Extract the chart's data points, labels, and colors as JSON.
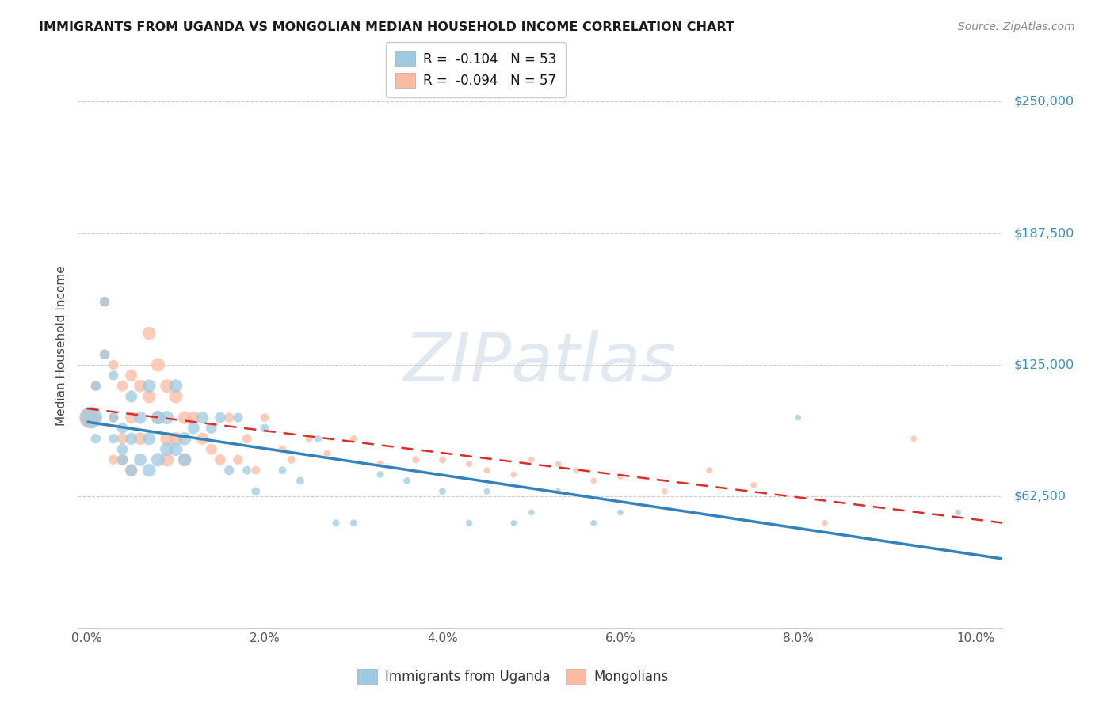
{
  "title": "IMMIGRANTS FROM UGANDA VS MONGOLIAN MEDIAN HOUSEHOLD INCOME CORRELATION CHART",
  "source": "Source: ZipAtlas.com",
  "ylabel": "Median Household Income",
  "yticks": [
    62500,
    125000,
    187500,
    250000
  ],
  "ytick_labels": [
    "$62,500",
    "$125,000",
    "$187,500",
    "$250,000"
  ],
  "xlim": [
    -0.001,
    0.103
  ],
  "ylim": [
    0,
    268000
  ],
  "blue_color": "#9ecae1",
  "pink_color": "#fcbba1",
  "blue_color_dark": "#3182bd",
  "pink_color_dark": "#de2d26",
  "watermark": "ZIPatlas",
  "ugandan_x": [
    0.0005,
    0.001,
    0.001,
    0.002,
    0.002,
    0.003,
    0.003,
    0.003,
    0.004,
    0.004,
    0.004,
    0.005,
    0.005,
    0.005,
    0.006,
    0.006,
    0.007,
    0.007,
    0.007,
    0.008,
    0.008,
    0.009,
    0.009,
    0.01,
    0.01,
    0.011,
    0.011,
    0.012,
    0.013,
    0.014,
    0.015,
    0.016,
    0.017,
    0.018,
    0.019,
    0.02,
    0.022,
    0.024,
    0.026,
    0.028,
    0.03,
    0.033,
    0.036,
    0.04,
    0.043,
    0.045,
    0.048,
    0.05,
    0.053,
    0.057,
    0.06,
    0.08,
    0.098
  ],
  "ugandan_y": [
    100000,
    90000,
    115000,
    130000,
    155000,
    90000,
    100000,
    120000,
    95000,
    85000,
    80000,
    110000,
    90000,
    75000,
    100000,
    80000,
    115000,
    90000,
    75000,
    100000,
    80000,
    100000,
    85000,
    115000,
    85000,
    90000,
    80000,
    95000,
    100000,
    95000,
    100000,
    75000,
    100000,
    75000,
    65000,
    95000,
    75000,
    70000,
    90000,
    50000,
    50000,
    73000,
    70000,
    65000,
    50000,
    65000,
    50000,
    55000,
    65000,
    50000,
    55000,
    100000,
    55000
  ],
  "ugandan_sizes": [
    400,
    80,
    80,
    80,
    80,
    80,
    80,
    80,
    100,
    100,
    100,
    120,
    120,
    120,
    130,
    130,
    140,
    140,
    140,
    150,
    150,
    150,
    150,
    150,
    150,
    140,
    140,
    120,
    120,
    100,
    100,
    80,
    80,
    60,
    60,
    60,
    50,
    50,
    40,
    40,
    40,
    40,
    40,
    40,
    35,
    35,
    30,
    30,
    30,
    30,
    30,
    30,
    30
  ],
  "mongolian_x": [
    0.0003,
    0.001,
    0.001,
    0.002,
    0.002,
    0.003,
    0.003,
    0.003,
    0.004,
    0.004,
    0.004,
    0.005,
    0.005,
    0.005,
    0.006,
    0.006,
    0.007,
    0.007,
    0.008,
    0.008,
    0.009,
    0.009,
    0.009,
    0.01,
    0.01,
    0.011,
    0.011,
    0.012,
    0.013,
    0.014,
    0.015,
    0.016,
    0.017,
    0.018,
    0.019,
    0.02,
    0.022,
    0.023,
    0.025,
    0.027,
    0.03,
    0.033,
    0.037,
    0.04,
    0.043,
    0.045,
    0.048,
    0.05,
    0.053,
    0.055,
    0.057,
    0.06,
    0.065,
    0.07,
    0.075,
    0.083,
    0.093
  ],
  "mongolian_y": [
    100000,
    115000,
    100000,
    130000,
    155000,
    125000,
    100000,
    80000,
    115000,
    90000,
    80000,
    120000,
    100000,
    75000,
    115000,
    90000,
    140000,
    110000,
    125000,
    100000,
    115000,
    90000,
    80000,
    110000,
    90000,
    100000,
    80000,
    100000,
    90000,
    85000,
    80000,
    100000,
    80000,
    90000,
    75000,
    100000,
    85000,
    80000,
    90000,
    83000,
    90000,
    78000,
    80000,
    80000,
    78000,
    75000,
    73000,
    80000,
    78000,
    75000,
    70000,
    72000,
    65000,
    75000,
    68000,
    50000,
    90000
  ],
  "mongolian_sizes": [
    350,
    80,
    80,
    80,
    80,
    80,
    80,
    80,
    100,
    100,
    100,
    120,
    120,
    120,
    130,
    130,
    140,
    140,
    150,
    150,
    150,
    150,
    150,
    150,
    150,
    140,
    140,
    120,
    120,
    100,
    100,
    80,
    80,
    70,
    60,
    60,
    50,
    50,
    40,
    40,
    40,
    40,
    40,
    40,
    35,
    35,
    30,
    30,
    30,
    30,
    30,
    30,
    30,
    30,
    30,
    30,
    30
  ]
}
